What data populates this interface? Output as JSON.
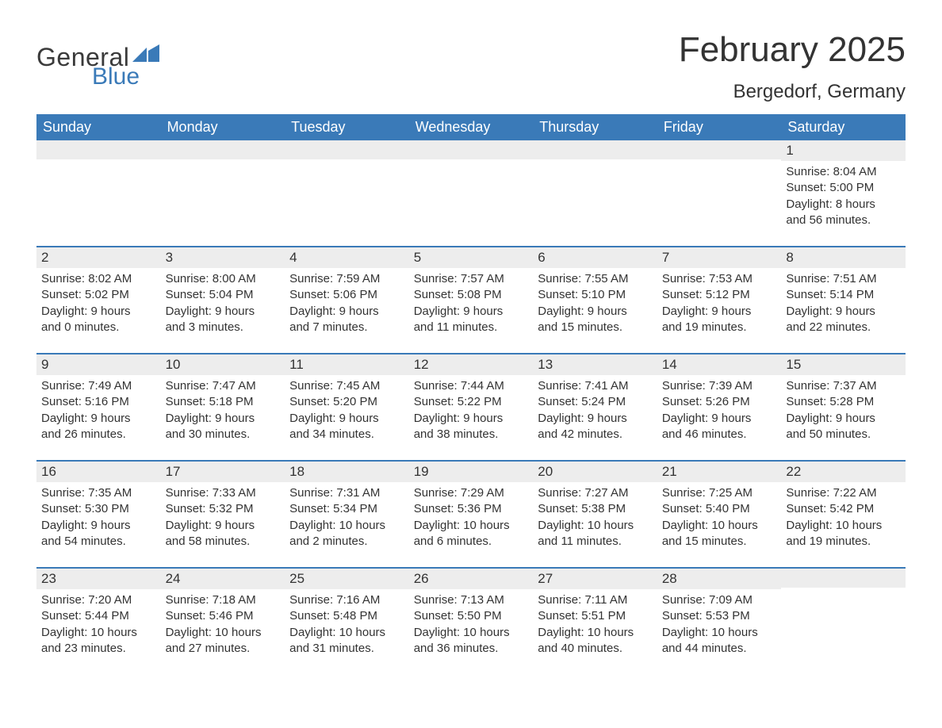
{
  "brand": {
    "logo_general": "General",
    "logo_blue": "Blue",
    "logo_icon_color": "#3a7ab8"
  },
  "title": {
    "month": "February 2025",
    "location": "Bergedorf, Germany"
  },
  "colors": {
    "header_bg": "#3a7ab8",
    "header_text": "#ffffff",
    "daynum_bg": "#ededed",
    "text": "#333333",
    "week_sep": "#3a7ab8",
    "page_bg": "#ffffff"
  },
  "fonts": {
    "month_title_pt": 44,
    "location_pt": 24,
    "header_pt": 18,
    "daynum_pt": 17,
    "body_pt": 15
  },
  "day_headers": [
    "Sunday",
    "Monday",
    "Tuesday",
    "Wednesday",
    "Thursday",
    "Friday",
    "Saturday"
  ],
  "weeks": [
    [
      {
        "n": "",
        "l1": "",
        "l2": "",
        "l3": "",
        "l4": ""
      },
      {
        "n": "",
        "l1": "",
        "l2": "",
        "l3": "",
        "l4": ""
      },
      {
        "n": "",
        "l1": "",
        "l2": "",
        "l3": "",
        "l4": ""
      },
      {
        "n": "",
        "l1": "",
        "l2": "",
        "l3": "",
        "l4": ""
      },
      {
        "n": "",
        "l1": "",
        "l2": "",
        "l3": "",
        "l4": ""
      },
      {
        "n": "",
        "l1": "",
        "l2": "",
        "l3": "",
        "l4": ""
      },
      {
        "n": "1",
        "l1": "Sunrise: 8:04 AM",
        "l2": "Sunset: 5:00 PM",
        "l3": "Daylight: 8 hours",
        "l4": "and 56 minutes."
      }
    ],
    [
      {
        "n": "2",
        "l1": "Sunrise: 8:02 AM",
        "l2": "Sunset: 5:02 PM",
        "l3": "Daylight: 9 hours",
        "l4": "and 0 minutes."
      },
      {
        "n": "3",
        "l1": "Sunrise: 8:00 AM",
        "l2": "Sunset: 5:04 PM",
        "l3": "Daylight: 9 hours",
        "l4": "and 3 minutes."
      },
      {
        "n": "4",
        "l1": "Sunrise: 7:59 AM",
        "l2": "Sunset: 5:06 PM",
        "l3": "Daylight: 9 hours",
        "l4": "and 7 minutes."
      },
      {
        "n": "5",
        "l1": "Sunrise: 7:57 AM",
        "l2": "Sunset: 5:08 PM",
        "l3": "Daylight: 9 hours",
        "l4": "and 11 minutes."
      },
      {
        "n": "6",
        "l1": "Sunrise: 7:55 AM",
        "l2": "Sunset: 5:10 PM",
        "l3": "Daylight: 9 hours",
        "l4": "and 15 minutes."
      },
      {
        "n": "7",
        "l1": "Sunrise: 7:53 AM",
        "l2": "Sunset: 5:12 PM",
        "l3": "Daylight: 9 hours",
        "l4": "and 19 minutes."
      },
      {
        "n": "8",
        "l1": "Sunrise: 7:51 AM",
        "l2": "Sunset: 5:14 PM",
        "l3": "Daylight: 9 hours",
        "l4": "and 22 minutes."
      }
    ],
    [
      {
        "n": "9",
        "l1": "Sunrise: 7:49 AM",
        "l2": "Sunset: 5:16 PM",
        "l3": "Daylight: 9 hours",
        "l4": "and 26 minutes."
      },
      {
        "n": "10",
        "l1": "Sunrise: 7:47 AM",
        "l2": "Sunset: 5:18 PM",
        "l3": "Daylight: 9 hours",
        "l4": "and 30 minutes."
      },
      {
        "n": "11",
        "l1": "Sunrise: 7:45 AM",
        "l2": "Sunset: 5:20 PM",
        "l3": "Daylight: 9 hours",
        "l4": "and 34 minutes."
      },
      {
        "n": "12",
        "l1": "Sunrise: 7:44 AM",
        "l2": "Sunset: 5:22 PM",
        "l3": "Daylight: 9 hours",
        "l4": "and 38 minutes."
      },
      {
        "n": "13",
        "l1": "Sunrise: 7:41 AM",
        "l2": "Sunset: 5:24 PM",
        "l3": "Daylight: 9 hours",
        "l4": "and 42 minutes."
      },
      {
        "n": "14",
        "l1": "Sunrise: 7:39 AM",
        "l2": "Sunset: 5:26 PM",
        "l3": "Daylight: 9 hours",
        "l4": "and 46 minutes."
      },
      {
        "n": "15",
        "l1": "Sunrise: 7:37 AM",
        "l2": "Sunset: 5:28 PM",
        "l3": "Daylight: 9 hours",
        "l4": "and 50 minutes."
      }
    ],
    [
      {
        "n": "16",
        "l1": "Sunrise: 7:35 AM",
        "l2": "Sunset: 5:30 PM",
        "l3": "Daylight: 9 hours",
        "l4": "and 54 minutes."
      },
      {
        "n": "17",
        "l1": "Sunrise: 7:33 AM",
        "l2": "Sunset: 5:32 PM",
        "l3": "Daylight: 9 hours",
        "l4": "and 58 minutes."
      },
      {
        "n": "18",
        "l1": "Sunrise: 7:31 AM",
        "l2": "Sunset: 5:34 PM",
        "l3": "Daylight: 10 hours",
        "l4": "and 2 minutes."
      },
      {
        "n": "19",
        "l1": "Sunrise: 7:29 AM",
        "l2": "Sunset: 5:36 PM",
        "l3": "Daylight: 10 hours",
        "l4": "and 6 minutes."
      },
      {
        "n": "20",
        "l1": "Sunrise: 7:27 AM",
        "l2": "Sunset: 5:38 PM",
        "l3": "Daylight: 10 hours",
        "l4": "and 11 minutes."
      },
      {
        "n": "21",
        "l1": "Sunrise: 7:25 AM",
        "l2": "Sunset: 5:40 PM",
        "l3": "Daylight: 10 hours",
        "l4": "and 15 minutes."
      },
      {
        "n": "22",
        "l1": "Sunrise: 7:22 AM",
        "l2": "Sunset: 5:42 PM",
        "l3": "Daylight: 10 hours",
        "l4": "and 19 minutes."
      }
    ],
    [
      {
        "n": "23",
        "l1": "Sunrise: 7:20 AM",
        "l2": "Sunset: 5:44 PM",
        "l3": "Daylight: 10 hours",
        "l4": "and 23 minutes."
      },
      {
        "n": "24",
        "l1": "Sunrise: 7:18 AM",
        "l2": "Sunset: 5:46 PM",
        "l3": "Daylight: 10 hours",
        "l4": "and 27 minutes."
      },
      {
        "n": "25",
        "l1": "Sunrise: 7:16 AM",
        "l2": "Sunset: 5:48 PM",
        "l3": "Daylight: 10 hours",
        "l4": "and 31 minutes."
      },
      {
        "n": "26",
        "l1": "Sunrise: 7:13 AM",
        "l2": "Sunset: 5:50 PM",
        "l3": "Daylight: 10 hours",
        "l4": "and 36 minutes."
      },
      {
        "n": "27",
        "l1": "Sunrise: 7:11 AM",
        "l2": "Sunset: 5:51 PM",
        "l3": "Daylight: 10 hours",
        "l4": "and 40 minutes."
      },
      {
        "n": "28",
        "l1": "Sunrise: 7:09 AM",
        "l2": "Sunset: 5:53 PM",
        "l3": "Daylight: 10 hours",
        "l4": "and 44 minutes."
      },
      {
        "n": "",
        "l1": "",
        "l2": "",
        "l3": "",
        "l4": ""
      }
    ]
  ]
}
